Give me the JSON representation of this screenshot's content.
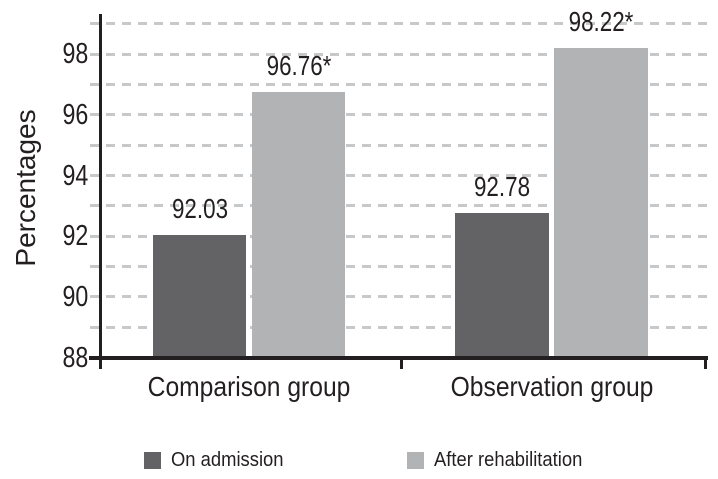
{
  "chart_data": {
    "type": "bar",
    "title": "",
    "categories": [
      "Comparison group",
      "Observation group"
    ],
    "series": [
      {
        "name": "On admission",
        "values": [
          92.03,
          92.78
        ],
        "labels": [
          "92.03",
          "92.78"
        ],
        "color": "#636366"
      },
      {
        "name": "After rehabilitation",
        "values": [
          96.76,
          98.22
        ],
        "labels": [
          "96.76*",
          "98.22*"
        ],
        "color": "#b2b3b5"
      }
    ],
    "xlabel": "",
    "ylabel": "Percentages",
    "ylim": [
      88,
      99.3
    ],
    "yticks": [
      88,
      90,
      92,
      94,
      96,
      98
    ],
    "gridline_values": [
      89,
      90,
      91,
      92,
      93,
      94,
      95,
      96,
      97,
      98,
      99
    ],
    "grid": "horizontal-dashed",
    "legend_position": "bottom",
    "colors": {
      "bar_on_admission": "#636366",
      "bar_after_rehabilitation": "#b2b3b5",
      "gridline": "#c7c8ca",
      "axis": "#231f20",
      "text": "#231f20",
      "background": "#ffffff"
    }
  },
  "legend": {
    "items": [
      {
        "label": "On admission"
      },
      {
        "label": "After rehabilitation"
      }
    ]
  }
}
